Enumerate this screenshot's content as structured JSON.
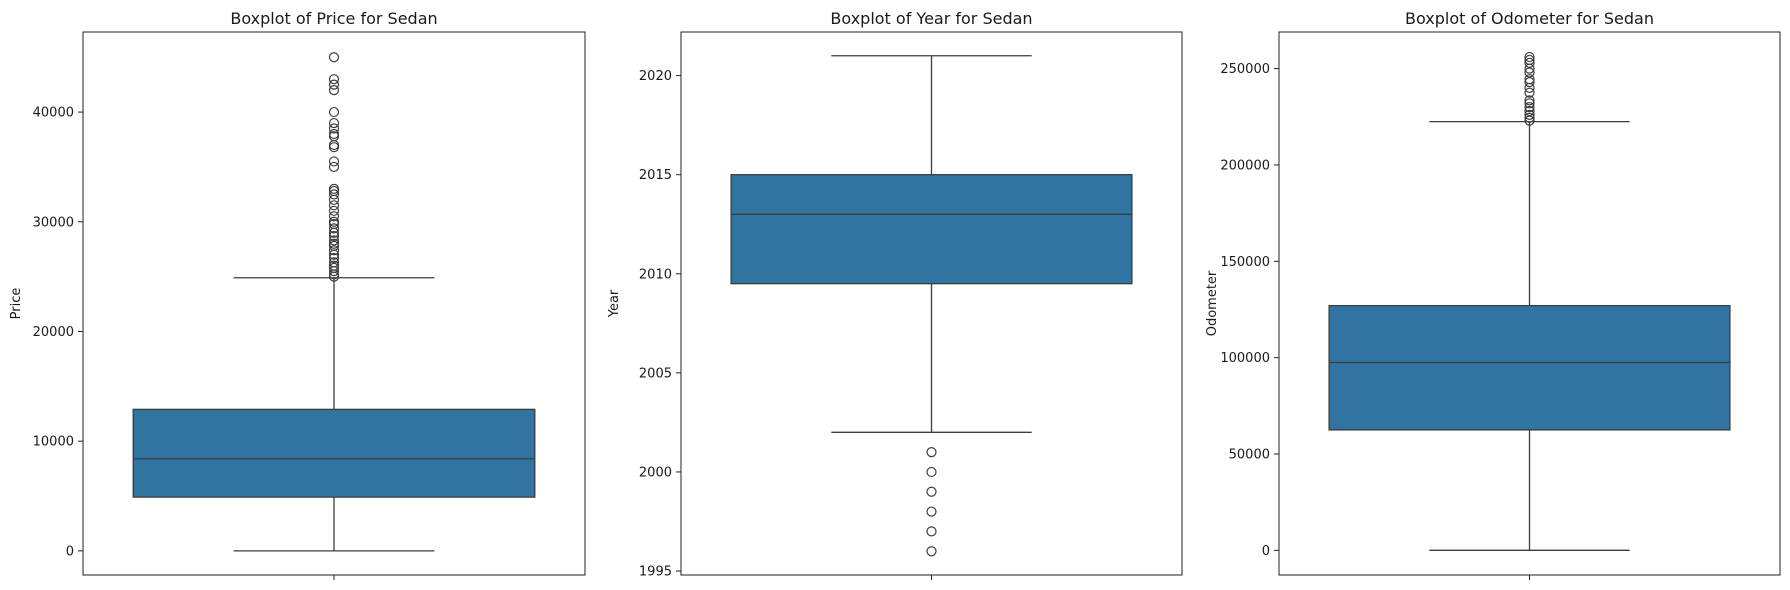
{
  "chart_data": [
    {
      "type": "boxplot",
      "title": "Boxplot of Price for Sedan",
      "xlabel": "",
      "ylabel": "Price",
      "ylim": [
        -2200,
        47300
      ],
      "yticks": [
        0,
        10000,
        20000,
        30000,
        40000
      ],
      "tick_labels": [
        "0",
        "10000",
        "20000",
        "30000",
        "40000"
      ],
      "grid": false,
      "box": {
        "whisker_low": 0,
        "q1": 4900,
        "median": 8400,
        "q3": 12900,
        "whisker_high": 24900
      },
      "outliers": [
        25000,
        25200,
        25500,
        25800,
        26000,
        26300,
        26700,
        27000,
        27400,
        27800,
        28000,
        28300,
        28700,
        29000,
        29400,
        29800,
        30000,
        30500,
        31000,
        31500,
        32000,
        32500,
        32800,
        33000,
        35000,
        35500,
        36800,
        37000,
        37800,
        38000,
        38500,
        39000,
        40000,
        42000,
        42500,
        43000,
        45000
      ],
      "color": "#3274a1"
    },
    {
      "type": "boxplot",
      "title": "Boxplot of Year for Sedan",
      "xlabel": "",
      "ylabel": "Year",
      "ylim": [
        1994.8,
        2022.2
      ],
      "yticks": [
        1995,
        2000,
        2005,
        2010,
        2015,
        2020
      ],
      "tick_labels": [
        "1995",
        "2000",
        "2005",
        "2010",
        "2015",
        "2020"
      ],
      "grid": false,
      "box": {
        "whisker_low": 2002,
        "q1": 2009.5,
        "median": 2013,
        "q3": 2015,
        "whisker_high": 2021
      },
      "outliers": [
        2001,
        2000,
        1999,
        1998,
        1997,
        1996
      ],
      "color": "#3274a1"
    },
    {
      "type": "boxplot",
      "title": "Boxplot of Odometer for Sedan",
      "xlabel": "",
      "ylabel": "Odometer",
      "ylim": [
        -12800,
        269000
      ],
      "yticks": [
        0,
        50000,
        100000,
        150000,
        200000,
        250000
      ],
      "tick_labels": [
        "0",
        "50000",
        "100000",
        "150000",
        "200000",
        "250000"
      ],
      "grid": false,
      "box": {
        "whisker_low": 0,
        "q1": 62500,
        "median": 97500,
        "q3": 127000,
        "whisker_high": 222500
      },
      "outliers": [
        223000,
        224500,
        226000,
        228000,
        230000,
        232000,
        233500,
        237500,
        240000,
        243000,
        244500,
        248000,
        250000,
        253000,
        254500,
        256000
      ],
      "color": "#3274a1"
    }
  ]
}
